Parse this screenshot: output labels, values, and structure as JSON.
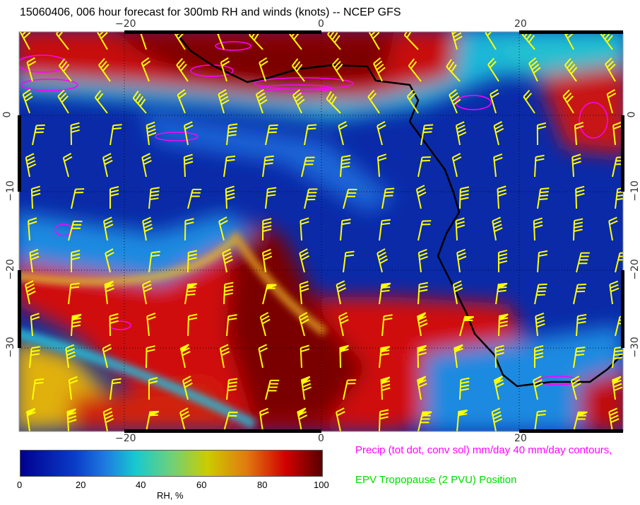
{
  "title": "15060406, 006 hour forecast for 300mb RH and winds (knots) -- NCEP GFS",
  "map": {
    "lon_ticks": [
      "−20",
      "0",
      "20"
    ],
    "lat_ticks": [
      "0",
      "−10",
      "−20",
      "−30"
    ],
    "extent": {
      "lon": [
        -30.5,
        30.5
      ],
      "lat": [
        -41,
        10.5
      ]
    },
    "colors": {
      "coastline": "#000000",
      "wind_barbs": "#ffff00",
      "precip_contours": "#ff00ff",
      "grid": "#000000"
    }
  },
  "colorbar": {
    "label": "RH, %",
    "ticks": [
      "0",
      "20",
      "40",
      "60",
      "80",
      "100"
    ],
    "range": [
      0,
      100
    ]
  },
  "legend": {
    "precip": "Precip (tot dot, conv sol) mm/day 40 mm/day contours,",
    "tropopause": "EPV Tropopause (2 PVU) Position"
  }
}
